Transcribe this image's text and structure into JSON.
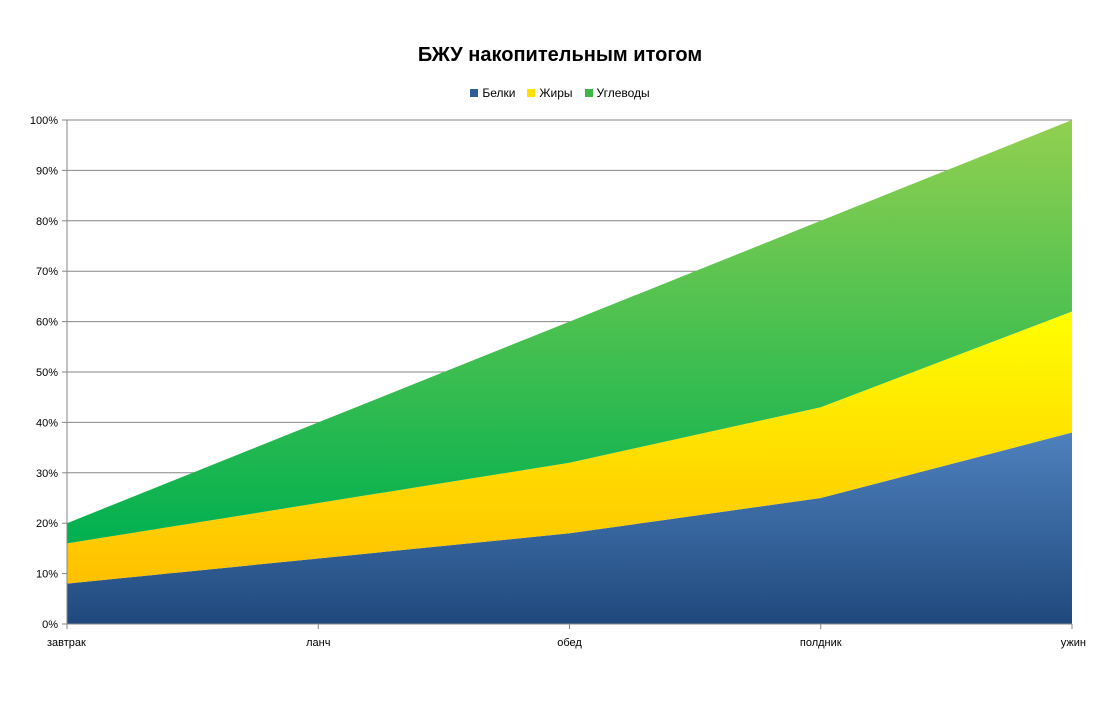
{
  "chart_data": {
    "type": "area",
    "stacked": true,
    "title": "БЖУ накопительным итогом",
    "categories": [
      "завтрак",
      "ланч",
      "обед",
      "полдник",
      "ужин"
    ],
    "series": [
      {
        "name": "Белки",
        "values": [
          8,
          13,
          18,
          25,
          38
        ],
        "color_top": "#4f81bd",
        "color_bottom": "#1f497d"
      },
      {
        "name": "Жиры",
        "values": [
          8,
          11,
          14,
          18,
          24
        ],
        "color_top": "#ffff00",
        "color_bottom": "#ffc000"
      },
      {
        "name": "Углеводы",
        "values": [
          4,
          16,
          28,
          37,
          38
        ],
        "color_top": "#92d050",
        "color_bottom": "#00b050"
      }
    ],
    "ylim": [
      0,
      100
    ],
    "yticks": [
      "0%",
      "10%",
      "20%",
      "30%",
      "40%",
      "50%",
      "60%",
      "70%",
      "80%",
      "90%",
      "100%"
    ],
    "grid": true,
    "legend_position": "top"
  }
}
